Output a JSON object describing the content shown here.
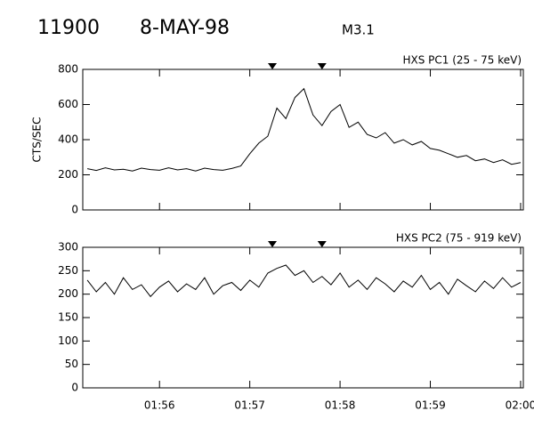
{
  "header": {
    "id": "11900",
    "date": "8-MAY-98",
    "class": "M3.1"
  },
  "chart_data": [
    {
      "type": "line",
      "title": "HXS PC1 (25 - 75 keV)",
      "y_label": "CTS/SEC",
      "color": "#000000",
      "x": [
        55.2,
        55.3,
        55.4,
        55.5,
        55.6,
        55.7,
        55.8,
        55.9,
        56.0,
        56.1,
        56.2,
        56.3,
        56.4,
        56.5,
        56.6,
        56.7,
        56.8,
        56.9,
        57.0,
        57.1,
        57.2,
        57.3,
        57.4,
        57.5,
        57.6,
        57.7,
        57.8,
        57.9,
        58.0,
        58.1,
        58.2,
        58.3,
        58.4,
        58.5,
        58.6,
        58.7,
        58.8,
        58.9,
        59.0,
        59.1,
        59.2,
        59.3,
        59.4,
        59.5,
        59.6,
        59.7,
        59.8,
        59.9,
        60.0
      ],
      "values": [
        235,
        225,
        240,
        228,
        232,
        222,
        238,
        230,
        226,
        240,
        228,
        235,
        222,
        238,
        230,
        226,
        236,
        250,
        320,
        380,
        420,
        580,
        520,
        640,
        690,
        540,
        480,
        560,
        600,
        470,
        500,
        430,
        410,
        440,
        380,
        400,
        370,
        390,
        350,
        340,
        320,
        300,
        310,
        280,
        290,
        270,
        285,
        260,
        270
      ],
      "markers": [
        57.25,
        57.8
      ],
      "xlim": [
        55.15,
        60.03
      ],
      "xticks": [
        56,
        57,
        58,
        59,
        60
      ],
      "ylim": [
        0,
        800
      ],
      "yticks": [
        0,
        200,
        400,
        600,
        800
      ]
    },
    {
      "type": "line",
      "title": "HXS PC2 (75 - 919 keV)",
      "color": "#000000",
      "x": [
        55.2,
        55.3,
        55.4,
        55.5,
        55.6,
        55.7,
        55.8,
        55.9,
        56.0,
        56.1,
        56.2,
        56.3,
        56.4,
        56.5,
        56.6,
        56.7,
        56.8,
        56.9,
        57.0,
        57.1,
        57.2,
        57.3,
        57.4,
        57.5,
        57.6,
        57.7,
        57.8,
        57.9,
        58.0,
        58.1,
        58.2,
        58.3,
        58.4,
        58.5,
        58.6,
        58.7,
        58.8,
        58.9,
        59.0,
        59.1,
        59.2,
        59.3,
        59.4,
        59.5,
        59.6,
        59.7,
        59.8,
        59.9,
        60.0
      ],
      "values": [
        230,
        205,
        225,
        200,
        235,
        210,
        220,
        195,
        215,
        228,
        205,
        222,
        210,
        235,
        200,
        218,
        225,
        208,
        230,
        215,
        245,
        255,
        262,
        240,
        250,
        225,
        238,
        220,
        245,
        215,
        230,
        210,
        235,
        222,
        205,
        228,
        215,
        240,
        210,
        225,
        200,
        232,
        218,
        205,
        228,
        212,
        235,
        215,
        225
      ],
      "markers": [
        57.25,
        57.8
      ],
      "xlim": [
        55.15,
        60.03
      ],
      "xticks": [
        {
          "value": 56,
          "label": "01:56"
        },
        {
          "value": 57,
          "label": "01:57"
        },
        {
          "value": 58,
          "label": "01:58"
        },
        {
          "value": 59,
          "label": "01:59"
        },
        {
          "value": 60,
          "label": "02:00"
        }
      ],
      "ylim": [
        0,
        300
      ],
      "yticks": [
        0,
        50,
        100,
        150,
        200,
        250,
        300
      ]
    }
  ]
}
